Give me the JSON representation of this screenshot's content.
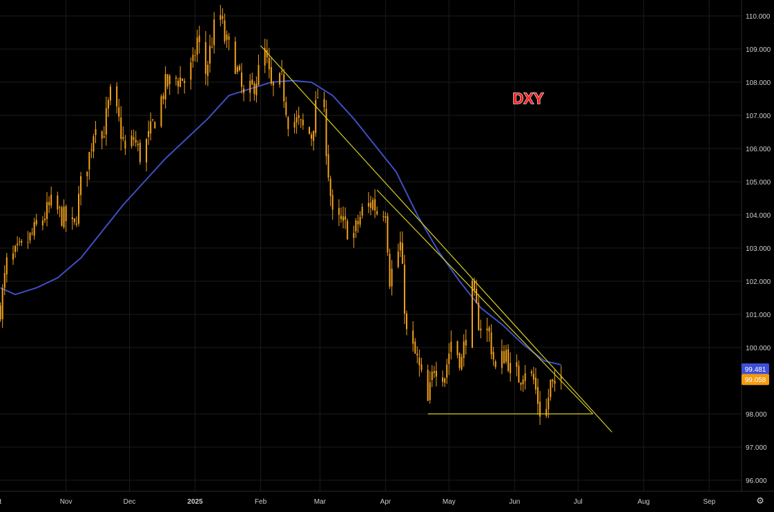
{
  "symbol": "DXY",
  "colors": {
    "background": "#000000",
    "grid": "#1c1c1c",
    "candle": "#f5a31a",
    "ma": "#3f4fc4",
    "trendline": "#d8d020",
    "watermark_fill": "#ff2020",
    "watermark_stroke": "#ffffff",
    "ma_tag": "#3d50d8",
    "price_tag": "#f59a10"
  },
  "chart_data": {
    "type": "candlestick",
    "title": "DXY",
    "y_ticks": [
      "110.000",
      "109.000",
      "108.000",
      "107.000",
      "106.000",
      "105.000",
      "104.000",
      "103.000",
      "102.000",
      "101.000",
      "100.000",
      "98.000",
      "97.000",
      "96.000"
    ],
    "y_tick_values": [
      110,
      109,
      108,
      107,
      106,
      105,
      104,
      103,
      102,
      101,
      100,
      98,
      97,
      96
    ],
    "ylim": [
      95.7,
      110.3
    ],
    "x_range": [
      "2024-10-01",
      "2025-09-30"
    ],
    "x_ticks": [
      {
        "label": "t",
        "date": "2024-10-01"
      },
      {
        "label": "Nov",
        "date": "2024-11-01"
      },
      {
        "label": "Dec",
        "date": "2024-12-01"
      },
      {
        "label": "2025",
        "date": "2025-01-01",
        "bold": true
      },
      {
        "label": "Feb",
        "date": "2025-02-01"
      },
      {
        "label": "Mar",
        "date": "2025-03-01"
      },
      {
        "label": "Apr",
        "date": "2025-04-01"
      },
      {
        "label": "May",
        "date": "2025-05-01"
      },
      {
        "label": "Jun",
        "date": "2025-06-01"
      },
      {
        "label": "Jul",
        "date": "2025-07-01"
      },
      {
        "label": "Aug",
        "date": "2025-08-01"
      },
      {
        "label": "Sep",
        "date": "2025-09-01"
      }
    ],
    "price_path": [
      [
        "2024-10-01",
        101.2
      ],
      [
        "2024-10-04",
        102.5
      ],
      [
        "2024-10-10",
        102.9
      ],
      [
        "2024-10-15",
        103.3
      ],
      [
        "2024-10-22",
        104.0
      ],
      [
        "2024-10-25",
        104.3
      ],
      [
        "2024-10-31",
        103.9
      ],
      [
        "2024-11-05",
        103.6
      ],
      [
        "2024-11-08",
        104.9
      ],
      [
        "2024-11-12",
        105.8
      ],
      [
        "2024-11-15",
        106.9
      ],
      [
        "2024-11-18",
        106.3
      ],
      [
        "2024-11-22",
        107.6
      ],
      [
        "2024-11-26",
        106.8
      ],
      [
        "2024-11-29",
        105.9
      ],
      [
        "2024-12-03",
        106.3
      ],
      [
        "2024-12-06",
        105.8
      ],
      [
        "2024-12-10",
        106.3
      ],
      [
        "2024-12-13",
        106.9
      ],
      [
        "2024-12-18",
        107.9
      ],
      [
        "2024-12-23",
        108.1
      ],
      [
        "2024-12-27",
        108.1
      ],
      [
        "2024-12-31",
        108.5
      ],
      [
        "2025-01-02",
        109.3
      ],
      [
        "2025-01-06",
        108.3
      ],
      [
        "2025-01-10",
        109.6
      ],
      [
        "2025-01-13",
        110.0
      ],
      [
        "2025-01-15",
        109.3
      ],
      [
        "2025-01-20",
        108.6
      ],
      [
        "2025-01-24",
        107.5
      ],
      [
        "2025-01-28",
        107.8
      ],
      [
        "2025-01-31",
        108.3
      ],
      [
        "2025-02-03",
        108.9
      ],
      [
        "2025-02-06",
        107.8
      ],
      [
        "2025-02-11",
        108.0
      ],
      [
        "2025-02-14",
        106.9
      ],
      [
        "2025-02-18",
        106.8
      ],
      [
        "2025-02-21",
        106.6
      ],
      [
        "2025-02-25",
        106.4
      ],
      [
        "2025-02-28",
        107.6
      ],
      [
        "2025-03-03",
        106.9
      ],
      [
        "2025-03-05",
        105.3
      ],
      [
        "2025-03-07",
        103.9
      ],
      [
        "2025-03-12",
        103.7
      ],
      [
        "2025-03-17",
        103.4
      ],
      [
        "2025-03-21",
        104.1
      ],
      [
        "2025-03-26",
        104.4
      ],
      [
        "2025-03-28",
        104.1
      ],
      [
        "2025-04-01",
        104.2
      ],
      [
        "2025-04-03",
        102.1
      ],
      [
        "2025-04-08",
        103.1
      ],
      [
        "2025-04-11",
        100.4
      ],
      [
        "2025-04-16",
        99.6
      ],
      [
        "2025-04-21",
        98.3
      ],
      [
        "2025-04-24",
        99.5
      ],
      [
        "2025-04-29",
        99.2
      ],
      [
        "2025-05-02",
        100.2
      ],
      [
        "2025-05-07",
        99.6
      ],
      [
        "2025-05-09",
        100.4
      ],
      [
        "2025-05-12",
        101.7
      ],
      [
        "2025-05-15",
        100.8
      ],
      [
        "2025-05-20",
        100.4
      ],
      [
        "2025-05-23",
        99.3
      ],
      [
        "2025-05-28",
        99.9
      ],
      [
        "2025-05-30",
        99.3
      ],
      [
        "2025-06-03",
        99.1
      ],
      [
        "2025-06-06",
        99.4
      ],
      [
        "2025-06-10",
        99.0
      ],
      [
        "2025-06-13",
        98.1
      ],
      [
        "2025-06-16",
        98.1
      ],
      [
        "2025-06-18",
        98.9
      ],
      [
        "2025-06-20",
        98.7
      ],
      [
        "2025-06-23",
        99.1
      ]
    ],
    "moving_average": [
      [
        "2024-10-01",
        101.8
      ],
      [
        "2024-10-08",
        101.6
      ],
      [
        "2024-10-18",
        101.8
      ],
      [
        "2024-10-28",
        102.1
      ],
      [
        "2024-11-08",
        102.7
      ],
      [
        "2024-11-18",
        103.5
      ],
      [
        "2024-11-28",
        104.3
      ],
      [
        "2024-12-08",
        105.0
      ],
      [
        "2024-12-18",
        105.7
      ],
      [
        "2024-12-28",
        106.3
      ],
      [
        "2025-01-07",
        106.9
      ],
      [
        "2025-01-17",
        107.6
      ],
      [
        "2025-01-27",
        107.8
      ],
      [
        "2025-02-06",
        108.0
      ],
      [
        "2025-02-16",
        108.05
      ],
      [
        "2025-02-25",
        108.0
      ],
      [
        "2025-03-07",
        107.6
      ],
      [
        "2025-03-17",
        106.9
      ],
      [
        "2025-03-27",
        106.1
      ],
      [
        "2025-04-06",
        105.3
      ],
      [
        "2025-04-16",
        104.0
      ],
      [
        "2025-04-26",
        102.9
      ],
      [
        "2025-05-06",
        102.0
      ],
      [
        "2025-05-16",
        101.2
      ],
      [
        "2025-05-26",
        100.7
      ],
      [
        "2025-06-05",
        100.1
      ],
      [
        "2025-06-15",
        99.6
      ],
      [
        "2025-06-23",
        99.48
      ]
    ],
    "trendlines": [
      {
        "from": [
          "2025-02-01",
          109.1
        ],
        "to": [
          "2025-07-17",
          97.45
        ]
      },
      {
        "from": [
          "2025-03-28",
          104.75
        ],
        "to": [
          "2025-07-08",
          98.0
        ]
      },
      {
        "from": [
          "2025-04-21",
          98.0
        ],
        "to": [
          "2025-07-08",
          98.0
        ]
      }
    ],
    "last_values": [
      {
        "label": "99.481",
        "value": 99.481,
        "series": "moving_average"
      },
      {
        "label": "99.058",
        "value": 99.058,
        "series": "price"
      }
    ]
  }
}
